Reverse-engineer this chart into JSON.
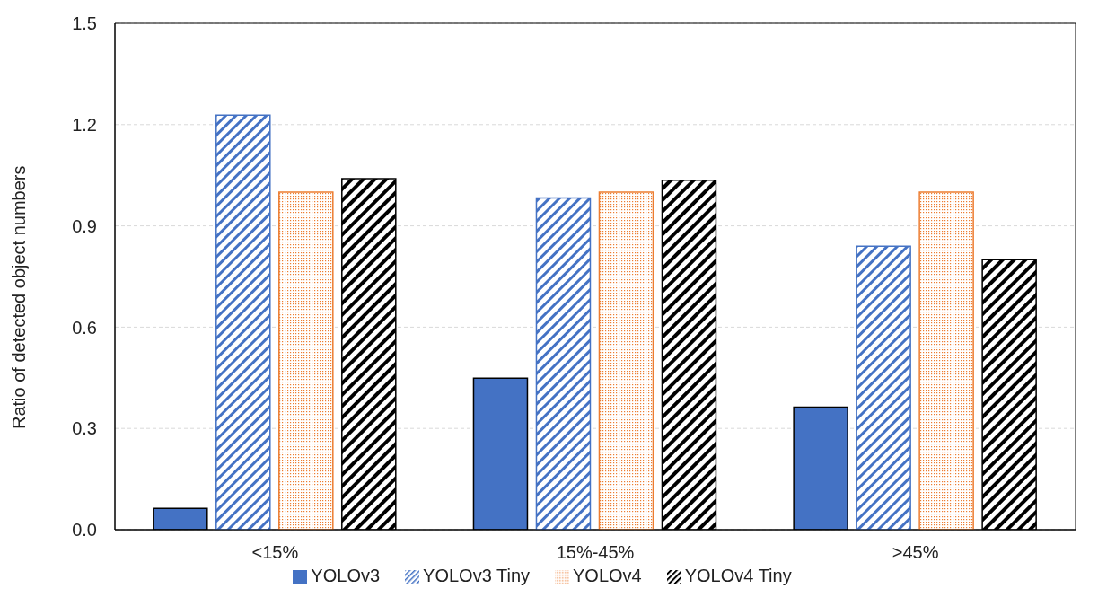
{
  "chart_data": {
    "type": "bar",
    "ylabel": "Ratio of detected object numbers",
    "categories": [
      "<15%",
      "15%-45%",
      ">45%"
    ],
    "series": [
      {
        "name": "YOLOv3",
        "color": "#4472c4",
        "values": [
          0.063,
          0.449,
          0.363
        ]
      },
      {
        "name": "YOLOv3 Tiny",
        "color": "#4472c4",
        "values": [
          1.228,
          0.983,
          0.84
        ]
      },
      {
        "name": "YOLOv4",
        "color": "#ed7d31",
        "values": [
          1.0,
          1.0,
          1.0
        ]
      },
      {
        "name": "YOLOv4 Tiny",
        "color": "#000000",
        "values": [
          1.04,
          1.035,
          0.8
        ]
      }
    ],
    "ylim": [
      0,
      1.5
    ],
    "yticks": [
      {
        "value": 0,
        "label": "0.0"
      },
      {
        "value": 0.3,
        "label": "0.3"
      },
      {
        "value": 0.6,
        "label": "0.6"
      },
      {
        "value": 0.9,
        "label": "0.9"
      },
      {
        "value": 1.2,
        "label": "1.2"
      },
      {
        "value": 1.5,
        "label": "1.5"
      }
    ],
    "grid": "y",
    "legend": "bottom"
  }
}
